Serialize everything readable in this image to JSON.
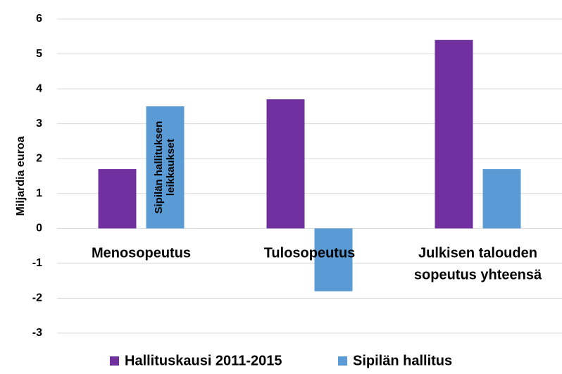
{
  "chart_data": {
    "type": "bar",
    "y_label": "Miljardia euroa",
    "categories": [
      "Menosopeutus",
      "Tulosopeutus",
      "Julkisen talouden sopeutus yhteensä"
    ],
    "series": [
      {
        "name": "Hallituskausi 2011-2015",
        "color": "#7030a0",
        "values": [
          1.7,
          3.7,
          5.4
        ]
      },
      {
        "name": "Sipilän hallitus",
        "color": "#5b9bd5",
        "values": [
          3.5,
          -1.8,
          1.7
        ]
      }
    ],
    "annotation": "Sipilän hallituksen leikkaukset",
    "ylim": [
      -3,
      6
    ],
    "yticks": [
      -3,
      -2,
      -1,
      0,
      1,
      2,
      3,
      4,
      5,
      6
    ],
    "grid": true,
    "legend": "bottom"
  }
}
